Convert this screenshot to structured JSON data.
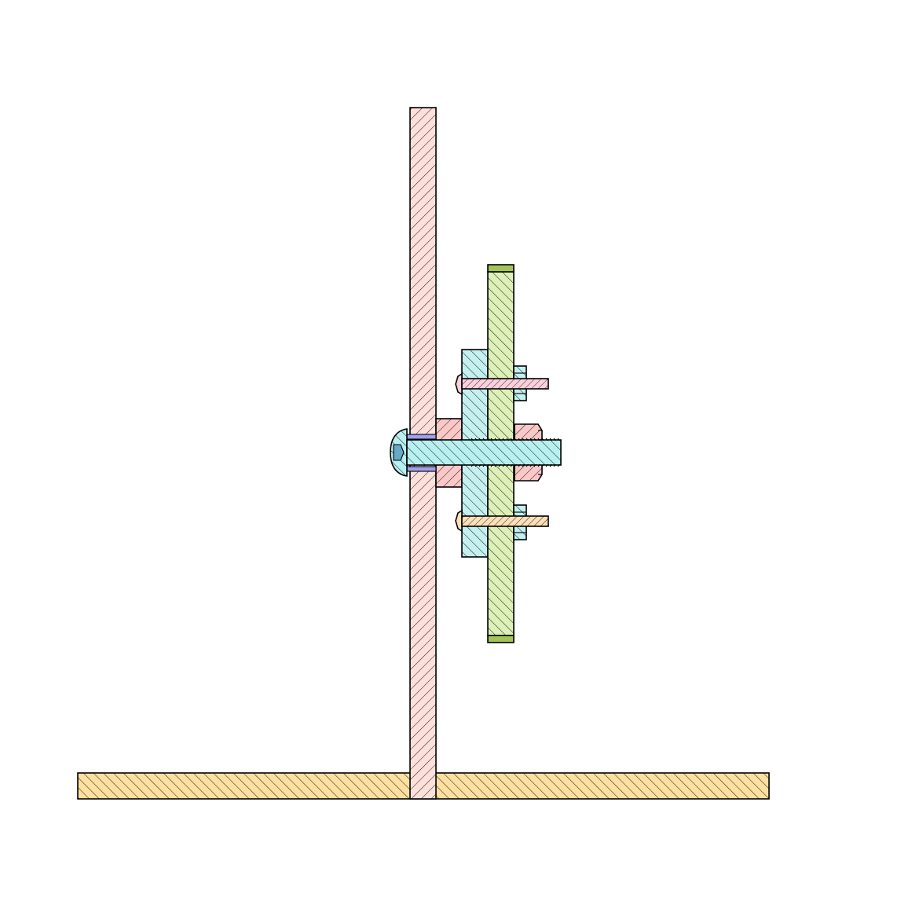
{
  "title": "",
  "colors": {
    "base_plate": "#fde0a0",
    "upright_plate": "#fde0da",
    "spacer_block": "#c4f0f0",
    "gear_disc": "#dcf0b8",
    "gear_disc_rim": "#a4c45a",
    "main_bolt": "#b8f0f0",
    "mount_block": "#fbc8c8",
    "upper_screw": "#fbd0dc",
    "lower_screw": "#fde0b8",
    "bolt_socket": "#6aa8c8",
    "washer": "#a0a0ee",
    "hatch_line": "#000000"
  },
  "parts": [
    {
      "id": "base-plate",
      "hatch": "bwd"
    },
    {
      "id": "upright-plate",
      "hatch": "fwd"
    },
    {
      "id": "mount-block",
      "hatch": "fwd"
    },
    {
      "id": "spacer-block",
      "hatch": "bwd"
    },
    {
      "id": "gear-disc",
      "hatch": "bwd"
    },
    {
      "id": "main-bolt",
      "hatch": "bwd",
      "threaded": true
    },
    {
      "id": "upper-screw",
      "hatch": "fwd",
      "threaded": true
    },
    {
      "id": "lower-screw",
      "hatch": "fwd",
      "threaded": true
    }
  ]
}
